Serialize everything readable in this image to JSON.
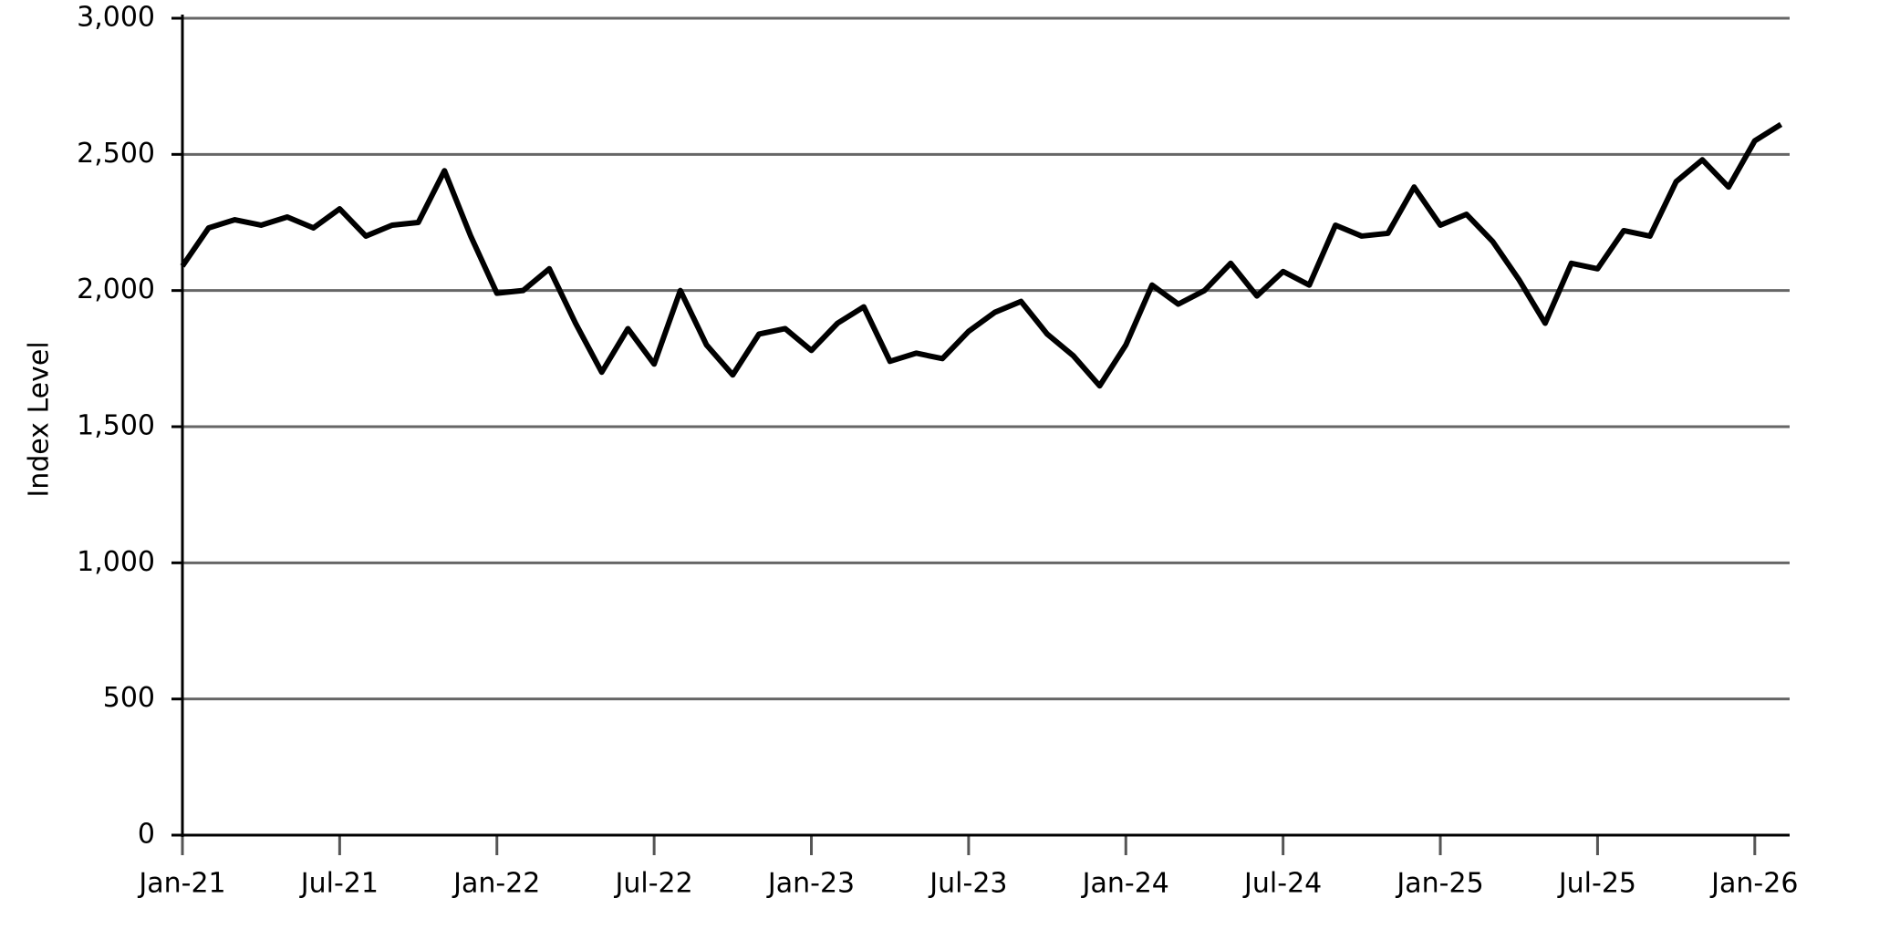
{
  "chart_data": {
    "type": "line",
    "y_label": "Index Level",
    "x": [
      "Jan-21",
      null,
      null,
      null,
      null,
      null,
      "Jul-21",
      null,
      null,
      null,
      null,
      null,
      "Jan-22",
      null,
      null,
      null,
      null,
      null,
      "Jul-22",
      null,
      null,
      null,
      null,
      null,
      "Jan-23",
      null,
      null,
      null,
      null,
      null,
      "Jul-23",
      null,
      null,
      null,
      null,
      null,
      "Jan-24",
      null,
      null,
      null,
      null,
      null,
      "Jul-24",
      null,
      null,
      null,
      null,
      null,
      "Jan-25",
      null,
      null,
      null,
      null,
      null,
      "Jul-25",
      null,
      null,
      null,
      null,
      null,
      "Jan-26",
      null
    ],
    "series": [
      {
        "name": "Index Level",
        "color": "#000000",
        "values": [
          2090,
          2230,
          2260,
          2240,
          2270,
          2230,
          2300,
          2200,
          2240,
          2250,
          2440,
          2200,
          1990,
          2000,
          2080,
          1880,
          1700,
          1860,
          1730,
          2000,
          1800,
          1690,
          1840,
          1860,
          1780,
          1880,
          1940,
          1740,
          1770,
          1750,
          1850,
          1920,
          1960,
          1840,
          1760,
          1650,
          1800,
          2020,
          1950,
          2000,
          2100,
          1980,
          2070,
          2020,
          2240,
          2200,
          2210,
          2380,
          2240,
          2280,
          2180,
          2040,
          1880,
          2100,
          2080,
          2220,
          2200,
          2400,
          2480,
          2380,
          2550,
          2610
        ]
      }
    ],
    "ylim": [
      0,
      3000
    ],
    "yticks": [
      0,
      500,
      {
        "value": 1000,
        "label": "1,000"
      },
      {
        "value": 1500,
        "label": "1,500"
      },
      {
        "value": 2000,
        "label": "2,000"
      },
      {
        "value": 2500,
        "label": "2,500"
      },
      {
        "value": 3000,
        "label": "3,000"
      }
    ],
    "grid": true
  }
}
